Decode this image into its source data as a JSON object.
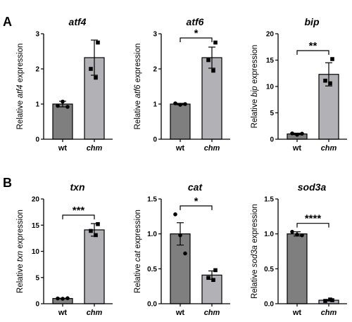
{
  "panel_labels": [
    "A",
    "B"
  ],
  "chart_data": [
    {
      "type": "bar",
      "title": "atf4",
      "ylabel": {
        "prefix": "Relative ",
        "gene": "atf4",
        "suffix": " expression"
      },
      "categories": [
        "wt",
        "chm"
      ],
      "values": [
        1.0,
        2.32
      ],
      "error": [
        0.08,
        0.5
      ],
      "points": [
        [
          0.95,
          1.07,
          0.92
        ],
        [
          2.75,
          2.0,
          1.75
        ]
      ],
      "ylim": [
        0,
        3
      ],
      "yticks": [
        "0",
        "1",
        "2",
        "3"
      ],
      "significance": ""
    },
    {
      "type": "bar",
      "title": "atf6",
      "ylabel": {
        "prefix": "Relative ",
        "gene": "atf6",
        "suffix": " expression"
      },
      "categories": [
        "wt",
        "chm"
      ],
      "values": [
        1.0,
        2.32
      ],
      "error": [
        0.02,
        0.3
      ],
      "points": [
        [
          1.02,
          0.98,
          1.0
        ],
        [
          2.75,
          2.25,
          1.95
        ]
      ],
      "ylim": [
        0,
        3
      ],
      "yticks": [
        "0",
        "1",
        "2",
        "3"
      ],
      "significance": "*"
    },
    {
      "type": "bar",
      "title": "bip",
      "ylabel": {
        "prefix": "Relative ",
        "gene": "bip",
        "suffix": " expression"
      },
      "categories": [
        "wt",
        "chm"
      ],
      "values": [
        1.0,
        12.3
      ],
      "error": [
        0.15,
        2.2
      ],
      "points": [
        [
          1.1,
          0.85,
          1.05
        ],
        [
          15.2,
          11.1,
          10.6
        ]
      ],
      "ylim": [
        0,
        20
      ],
      "yticks": [
        "0",
        "5",
        "10",
        "15",
        "20"
      ],
      "significance": "**"
    },
    {
      "type": "bar",
      "title": "txn",
      "ylabel": {
        "prefix": "Relative ",
        "gene": "txn",
        "suffix": " expression"
      },
      "categories": [
        "wt",
        "chm"
      ],
      "values": [
        1.0,
        14.1
      ],
      "error": [
        0.05,
        1.2
      ],
      "points": [
        [
          1.0,
          0.95,
          1.05
        ],
        [
          15.2,
          13.9,
          13.1
        ]
      ],
      "ylim": [
        0,
        20
      ],
      "yticks": [
        "0",
        "5",
        "10",
        "15",
        "20"
      ],
      "significance": "***"
    },
    {
      "type": "bar",
      "title": "cat",
      "ylabel": {
        "prefix": "Relative ",
        "gene": "cat",
        "suffix": " expression"
      },
      "categories": [
        "wt",
        "chm"
      ],
      "values": [
        1.0,
        0.41
      ],
      "error": [
        0.16,
        0.06
      ],
      "points": [
        [
          1.28,
          0.98,
          0.72
        ],
        [
          0.48,
          0.37,
          0.34
        ]
      ],
      "ylim": [
        0,
        1.5
      ],
      "yticks": [
        "0.0",
        "0.5",
        "1.0",
        "1.5"
      ],
      "significance": "*"
    },
    {
      "type": "bar",
      "title": "sod3a",
      "ylabel": {
        "prefix": "Relative ",
        "gene": "sod3a",
        "suffix": " expression"
      },
      "categories": [
        "wt",
        "chm"
      ],
      "values": [
        1.0,
        0.05
      ],
      "error": [
        0.03,
        0.01
      ],
      "points": [
        [
          1.03,
          0.99,
          0.98
        ],
        [
          0.05,
          0.04,
          0.06
        ]
      ],
      "ylim": [
        0,
        1.5
      ],
      "yticks": [
        "0.0",
        "0.5",
        "1.0",
        "1.5"
      ],
      "significance": "****"
    }
  ],
  "colors": {
    "wt_bar": "#7f7f7f",
    "chm_bar": "#b1b1b6",
    "outline": "#000000"
  }
}
